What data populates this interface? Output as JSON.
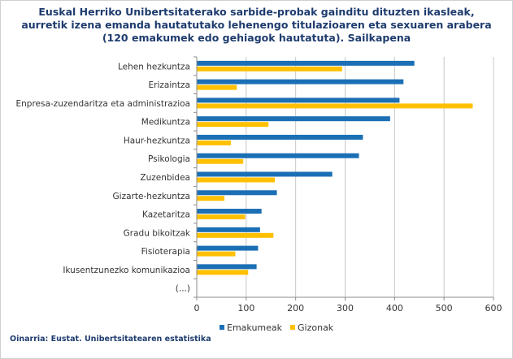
{
  "title_lines": [
    "Euskal Herriko Unibertsitaterako sarbide-probak gainditu dituzten ikasleak,",
    "aurretik izena emanda hautatutako lehenengo titulazioaren eta sexuaren arabera",
    "(120 emakumek edo gehiagok hautatuta). Sailkapena"
  ],
  "source": "Oinarria: Eustat. Unibertsitatearen estatistika",
  "colors": {
    "Emakumeak": "#1b6fb5",
    "Gizonak": "#ffc000",
    "grid": "#c8c8c8",
    "axis": "#8c8c8c"
  },
  "chart_data": {
    "type": "bar",
    "orientation": "horizontal",
    "title": "Euskal Herriko Unibertsitaterako sarbide-probak gainditu dituzten ikasleak, aurretik izena emanda hautatutako lehenengo titulazioaren eta sexuaren arabera (120 emakumek edo gehiagok hautatuta). Sailkapena",
    "categories": [
      "Lehen hezkuntza",
      "Erizaintza",
      "Enpresa-zuzendaritza eta administrazioa",
      "Medikuntza",
      "Haur-hezkuntza",
      "Psikologia",
      "Zuzenbidea",
      "Gizarte-hezkuntza",
      "Kazetaritza",
      "Gradu bikoitzak",
      "Fisioterapia",
      "Ikusentzunezko komunikazioa",
      "(...)"
    ],
    "series": [
      {
        "name": "Emakumeak",
        "values": [
          440,
          418,
          410,
          391,
          336,
          328,
          274,
          162,
          131,
          128,
          124,
          121,
          null
        ]
      },
      {
        "name": "Gizonak",
        "values": [
          294,
          81,
          558,
          145,
          69,
          94,
          158,
          56,
          98,
          155,
          78,
          104,
          null
        ]
      }
    ],
    "xlim": [
      0,
      600
    ],
    "xticks": [
      "0",
      "100",
      "200",
      "300",
      "400",
      "500",
      "600"
    ],
    "grid": true,
    "legend": "bottom"
  }
}
